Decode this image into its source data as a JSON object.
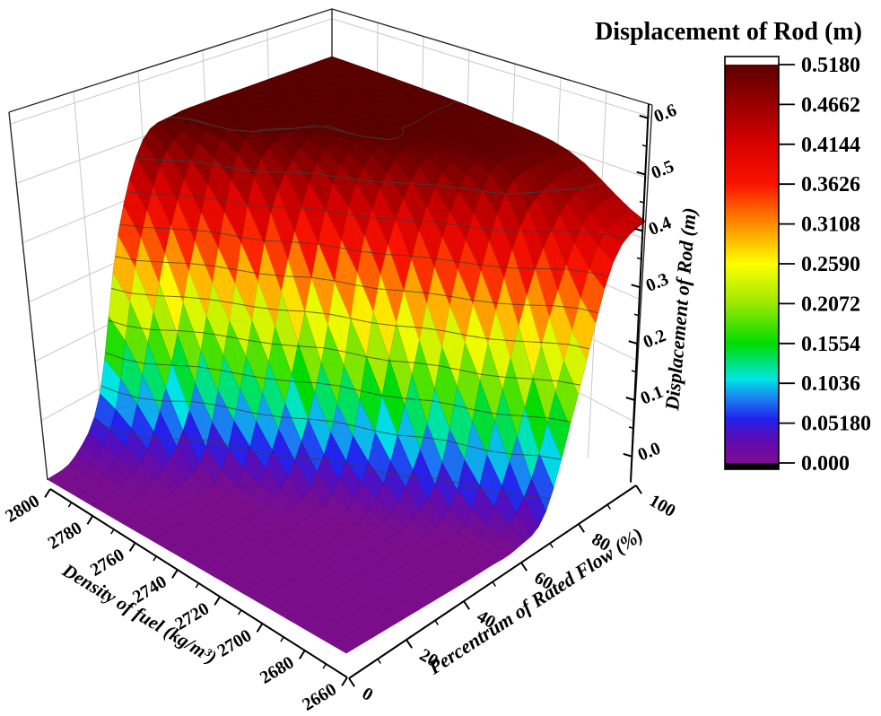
{
  "figure": {
    "background": "#ffffff"
  },
  "colorbar": {
    "title": "Displacement of Rod (m)",
    "tick_labels": [
      "0.5180",
      "0.4662",
      "0.4144",
      "0.3626",
      "0.3108",
      "0.2590",
      "0.2072",
      "0.1554",
      "0.1036",
      "0.05180",
      "0.000"
    ],
    "tick_values": [
      0.518,
      0.4662,
      0.4144,
      0.3626,
      0.3108,
      0.259,
      0.2072,
      0.1554,
      0.1036,
      0.0518,
      0.0
    ],
    "above_color": "#ffffff",
    "below_color": "#060606"
  },
  "colormap": {
    "positions": [
      0,
      0.06,
      0.11,
      0.16,
      0.21,
      0.3,
      0.4,
      0.5,
      0.6,
      0.7,
      0.8,
      0.9,
      1.0
    ],
    "colors": [
      "#7C0E8E",
      "#5C0BB4",
      "#2222EE",
      "#1C7CF2",
      "#00E5E5",
      "#00DC00",
      "#9CE800",
      "#FFFF00",
      "#FF8C00",
      "#FA1400",
      "#D80000",
      "#9A0000",
      "#5C0000"
    ]
  },
  "axes": {
    "density": {
      "title": "Density of fuel (kg/m³)",
      "range": [
        2660,
        2800
      ],
      "major_ticks": [
        2800,
        2780,
        2760,
        2740,
        2720,
        2700,
        2680,
        2660
      ],
      "minor_ticks": [
        2790,
        2770,
        2750,
        2730,
        2710,
        2690,
        2670
      ]
    },
    "flow": {
      "title": "Percentrum of Rated Flow (%)",
      "range": [
        0,
        100
      ],
      "major_ticks": [
        0,
        20,
        40,
        60,
        80,
        100
      ],
      "minor_ticks": [
        10,
        30,
        50,
        70,
        90
      ]
    },
    "z": {
      "title": "Displacement of Rod (m)",
      "range": [
        0,
        0.6
      ],
      "major_ticks": [
        0,
        0.1,
        0.2,
        0.3,
        0.4,
        0.5,
        0.6
      ],
      "major_tick_labels": [
        "0.0",
        "0.1",
        "0.2",
        "0.3",
        "0.4",
        "0.5",
        "0.6"
      ],
      "minor_ticks": [
        0.05,
        0.15,
        0.25,
        0.35,
        0.45,
        0.55
      ]
    }
  },
  "chart_data": {
    "type": "surface",
    "title": "Displacement of Rod (m)",
    "x_label": "Density of fuel (kg/m³)",
    "y_label": "Percentrum of Rated Flow (%)",
    "z_label": "Displacement of Rod (m)",
    "x_densities": [
      2660,
      2695,
      2730,
      2765,
      2800
    ],
    "y_flow_percent": [
      0,
      10,
      20,
      30,
      40,
      50,
      60,
      70,
      80,
      90,
      100
    ],
    "z_displacement": [
      [
        0,
        0,
        0,
        0,
        0,
        0.001,
        0.004,
        0.035,
        0.194,
        0.383,
        0.429
      ],
      [
        0,
        0,
        0,
        0.001,
        0.001,
        0.009,
        0.072,
        0.305,
        0.467,
        0.496,
        0.499
      ],
      [
        0,
        0,
        0,
        0.002,
        0.018,
        0.128,
        0.387,
        0.497,
        0.513,
        0.515,
        0.515
      ],
      [
        0,
        0,
        0.005,
        0.042,
        0.231,
        0.458,
        0.513,
        0.519,
        0.52,
        0.52,
        0.52
      ],
      [
        0.001,
        0.012,
        0.091,
        0.345,
        0.494,
        0.519,
        0.522,
        0.522,
        0.522,
        0.522,
        0.522
      ]
    ],
    "z_color_range": [
      0,
      0.518
    ],
    "z_axis_range": [
      0,
      0.6
    ],
    "contour_levels": [
      0.0518,
      0.1036,
      0.1554,
      0.2072,
      0.259,
      0.3108,
      0.3626,
      0.4144,
      0.4662,
      0.518
    ],
    "grid": true,
    "legend_position": "right-colorbar"
  }
}
